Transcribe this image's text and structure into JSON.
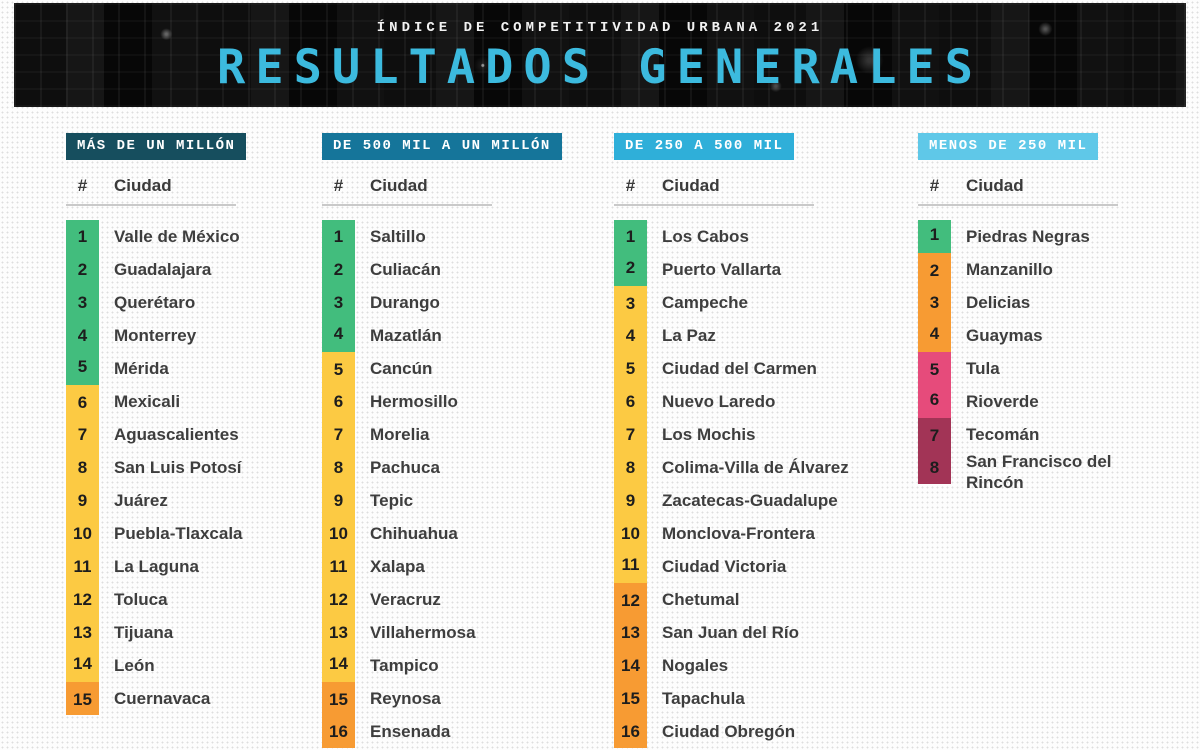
{
  "banner": {
    "supertitle": "ÍNDICE DE COMPETITIVIDAD URBANA 2021",
    "title": "RESULTADOS GENERALES"
  },
  "table_header": {
    "rank": "#",
    "city": "Ciudad"
  },
  "colors": {
    "accent": "#3cbade",
    "green": "#42bd7d",
    "yellow": "#fcca43",
    "orange": "#f79b33",
    "pink": "#e64b7b",
    "maroon": "#a23456"
  },
  "columns": [
    {
      "label": "MÁS DE UN MILLÓN",
      "chip_color": "#164e5e",
      "rows": [
        {
          "rank": "1",
          "city": "Valle de México",
          "tier": "green"
        },
        {
          "rank": "2",
          "city": "Guadalajara",
          "tier": "green"
        },
        {
          "rank": "3",
          "city": "Querétaro",
          "tier": "green"
        },
        {
          "rank": "4",
          "city": "Monterrey",
          "tier": "green"
        },
        {
          "rank": "5",
          "city": "Mérida",
          "tier": "green"
        },
        {
          "rank": "6",
          "city": "Mexicali",
          "tier": "yellow"
        },
        {
          "rank": "7",
          "city": "Aguascalientes",
          "tier": "yellow"
        },
        {
          "rank": "8",
          "city": "San Luis Potosí",
          "tier": "yellow"
        },
        {
          "rank": "9",
          "city": "Juárez",
          "tier": "yellow"
        },
        {
          "rank": "10",
          "city": "Puebla-Tlaxcala",
          "tier": "yellow"
        },
        {
          "rank": "11",
          "city": "La Laguna",
          "tier": "yellow"
        },
        {
          "rank": "12",
          "city": "Toluca",
          "tier": "yellow"
        },
        {
          "rank": "13",
          "city": "Tijuana",
          "tier": "yellow"
        },
        {
          "rank": "14",
          "city": "León",
          "tier": "yellow"
        },
        {
          "rank": "15",
          "city": "Cuernavaca",
          "tier": "orange"
        }
      ]
    },
    {
      "label": "DE 500 MIL A UN MILLÓN",
      "chip_color": "#15759a",
      "rows": [
        {
          "rank": "1",
          "city": "Saltillo",
          "tier": "green"
        },
        {
          "rank": "2",
          "city": "Culiacán",
          "tier": "green"
        },
        {
          "rank": "3",
          "city": "Durango",
          "tier": "green"
        },
        {
          "rank": "4",
          "city": "Mazatlán",
          "tier": "green"
        },
        {
          "rank": "5",
          "city": "Cancún",
          "tier": "yellow"
        },
        {
          "rank": "6",
          "city": "Hermosillo",
          "tier": "yellow"
        },
        {
          "rank": "7",
          "city": "Morelia",
          "tier": "yellow"
        },
        {
          "rank": "8",
          "city": "Pachuca",
          "tier": "yellow"
        },
        {
          "rank": "9",
          "city": "Tepic",
          "tier": "yellow"
        },
        {
          "rank": "10",
          "city": "Chihuahua",
          "tier": "yellow"
        },
        {
          "rank": "11",
          "city": "Xalapa",
          "tier": "yellow"
        },
        {
          "rank": "12",
          "city": "Veracruz",
          "tier": "yellow"
        },
        {
          "rank": "13",
          "city": "Villahermosa",
          "tier": "yellow"
        },
        {
          "rank": "14",
          "city": "Tampico",
          "tier": "yellow"
        },
        {
          "rank": "15",
          "city": "Reynosa",
          "tier": "orange"
        },
        {
          "rank": "16",
          "city": "Ensenada",
          "tier": "orange"
        }
      ]
    },
    {
      "label": "DE 250 A 500 MIL",
      "chip_color": "#2fafd9",
      "rows": [
        {
          "rank": "1",
          "city": "Los Cabos",
          "tier": "green"
        },
        {
          "rank": "2",
          "city": "Puerto Vallarta",
          "tier": "green"
        },
        {
          "rank": "3",
          "city": "Campeche",
          "tier": "yellow"
        },
        {
          "rank": "4",
          "city": "La Paz",
          "tier": "yellow"
        },
        {
          "rank": "5",
          "city": "Ciudad del Carmen",
          "tier": "yellow"
        },
        {
          "rank": "6",
          "city": "Nuevo Laredo",
          "tier": "yellow"
        },
        {
          "rank": "7",
          "city": "Los Mochis",
          "tier": "yellow"
        },
        {
          "rank": "8",
          "city": "Colima-Villa de Álvarez",
          "tier": "yellow"
        },
        {
          "rank": "9",
          "city": "Zacatecas-Guadalupe",
          "tier": "yellow"
        },
        {
          "rank": "10",
          "city": "Monclova-Frontera",
          "tier": "yellow"
        },
        {
          "rank": "11",
          "city": "Ciudad Victoria",
          "tier": "yellow"
        },
        {
          "rank": "12",
          "city": "Chetumal",
          "tier": "orange"
        },
        {
          "rank": "13",
          "city": "San Juan del Río",
          "tier": "orange"
        },
        {
          "rank": "14",
          "city": "Nogales",
          "tier": "orange"
        },
        {
          "rank": "15",
          "city": "Tapachula",
          "tier": "orange"
        },
        {
          "rank": "16",
          "city": "Ciudad Obregón",
          "tier": "orange"
        }
      ]
    },
    {
      "label": "MENOS DE 250 MIL",
      "chip_color": "#5fc8e8",
      "rows": [
        {
          "rank": "1",
          "city": "Piedras Negras",
          "tier": "green"
        },
        {
          "rank": "2",
          "city": "Manzanillo",
          "tier": "orange"
        },
        {
          "rank": "3",
          "city": "Delicias",
          "tier": "orange"
        },
        {
          "rank": "4",
          "city": "Guaymas",
          "tier": "orange"
        },
        {
          "rank": "5",
          "city": "Tula",
          "tier": "pink"
        },
        {
          "rank": "6",
          "city": "Rioverde",
          "tier": "pink"
        },
        {
          "rank": "7",
          "city": "Tecomán",
          "tier": "maroon"
        },
        {
          "rank": "8",
          "city": "San Francisco del Rincón",
          "tier": "maroon"
        }
      ]
    }
  ]
}
